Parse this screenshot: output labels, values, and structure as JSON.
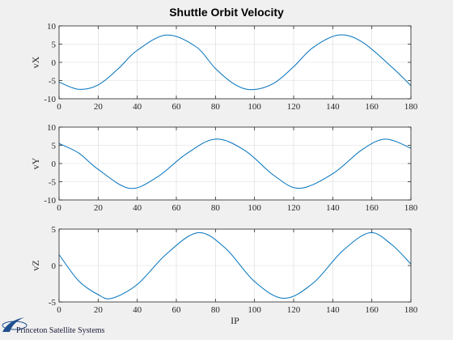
{
  "title": "Shuttle Orbit Velocity",
  "logo": {
    "text": "Princeton Satellite Systems",
    "color": "#1f4f8f"
  },
  "colors": {
    "line": "#0072bd",
    "grid": "#d9d9d9",
    "axes": "#262626",
    "plot_bg": "#ffffff",
    "figure_bg": "#f0f0f0"
  },
  "chart_data": [
    {
      "type": "line",
      "ylabel": "vX",
      "xlabel": "",
      "xlim": [
        0,
        180
      ],
      "ylim": [
        -10,
        10
      ],
      "xticks": [
        0,
        20,
        40,
        60,
        80,
        100,
        120,
        140,
        160,
        180
      ],
      "yticks": [
        -10,
        -5,
        0,
        5,
        10
      ],
      "grid": true,
      "x": [
        0,
        10,
        20,
        30,
        40,
        55,
        70,
        80,
        90,
        99,
        110,
        120,
        130,
        143,
        155,
        170,
        180
      ],
      "y": [
        -5.4,
        -7.4,
        -6.2,
        -1.9,
        3.3,
        7.5,
        4.3,
        -1.7,
        -6.1,
        -7.5,
        -5.7,
        -1.2,
        4.1,
        7.5,
        5.6,
        -1.2,
        -6.4
      ]
    },
    {
      "type": "line",
      "ylabel": "vY",
      "xlabel": "",
      "xlim": [
        0,
        180
      ],
      "ylim": [
        -10,
        10
      ],
      "xticks": [
        0,
        20,
        40,
        60,
        80,
        100,
        120,
        140,
        160,
        180
      ],
      "yticks": [
        -10,
        -5,
        0,
        5,
        10
      ],
      "grid": true,
      "x": [
        0,
        10,
        20,
        36,
        50,
        65,
        80,
        95,
        110,
        123,
        140,
        155,
        167,
        180
      ],
      "y": [
        5.5,
        2.9,
        -1.6,
        -6.8,
        -3.8,
        2.6,
        6.7,
        3.6,
        -3.3,
        -6.8,
        -2.8,
        3.8,
        6.7,
        4.2
      ]
    },
    {
      "type": "line",
      "ylabel": "vZ",
      "xlabel": "IP",
      "xlim": [
        0,
        180
      ],
      "ylim": [
        -5,
        5
      ],
      "xticks": [
        0,
        20,
        40,
        60,
        80,
        100,
        120,
        140,
        160,
        180
      ],
      "yticks": [
        -5,
        0,
        5
      ],
      "grid": true,
      "x": [
        0,
        10,
        20,
        27,
        40,
        55,
        71,
        85,
        100,
        115,
        130,
        145,
        159,
        170,
        180
      ],
      "y": [
        1.5,
        -2.1,
        -4.0,
        -4.5,
        -2.6,
        1.6,
        4.5,
        2.4,
        -2.2,
        -4.5,
        -2.4,
        2.0,
        4.5,
        2.9,
        0.2
      ]
    }
  ]
}
